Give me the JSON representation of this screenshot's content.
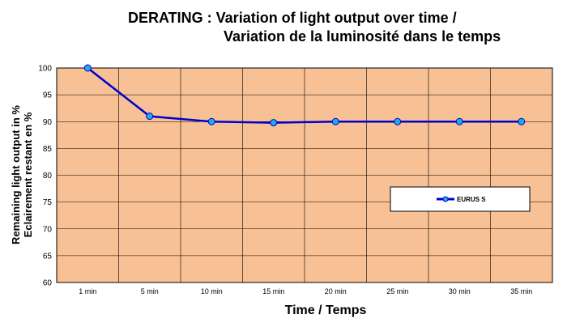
{
  "chart_data": {
    "type": "line",
    "title_line1": "DERATING : Variation of light output over time /",
    "title_line2": "Variation de la luminosité dans le temps",
    "xlabel": "Time / Temps",
    "ylabel_line1": "Remaining light output in %",
    "ylabel_line2": "Eclairement restant en %",
    "categories": [
      "1 min",
      "5 min",
      "10 min",
      "15 min",
      "20 min",
      "25 min",
      "30 min",
      "35 min"
    ],
    "ylim": [
      60,
      100
    ],
    "yticks": [
      60,
      65,
      70,
      75,
      80,
      85,
      90,
      95,
      100
    ],
    "grid": true,
    "legend_position": "right",
    "series": [
      {
        "name": "EURUS S",
        "values": [
          100,
          91,
          90,
          89.8,
          90,
          90,
          90,
          90
        ]
      }
    ],
    "colors": {
      "plot_background": "#F8C095",
      "line": "#0000CC",
      "marker_fill": "#22AAEE",
      "grid": "#000000"
    }
  }
}
